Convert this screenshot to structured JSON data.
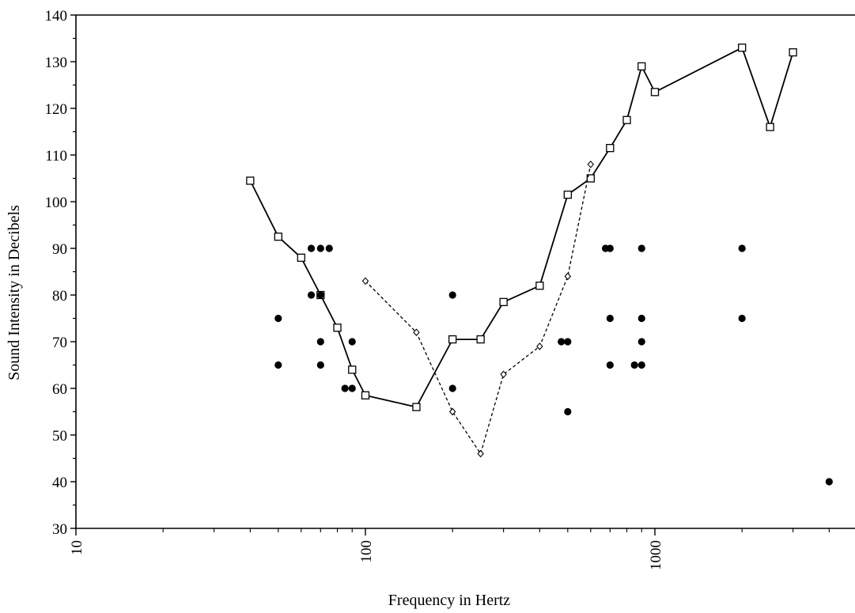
{
  "chart_data": {
    "type": "scatter",
    "xlabel": "Frequency in Hertz",
    "ylabel": "Sound Intensity in Decibels",
    "x_scale": "log",
    "xlim": [
      10,
      4500
    ],
    "ylim": [
      30,
      140
    ],
    "x_ticks": [
      "10",
      "100",
      "1000"
    ],
    "y_ticks": [
      "30",
      "40",
      "50",
      "60",
      "70",
      "80",
      "90",
      "100",
      "110",
      "120",
      "130",
      "140"
    ],
    "grid": false,
    "series": [
      {
        "marker": "open-square",
        "line": "solid",
        "points": [
          [
            40,
            104.5
          ],
          [
            50,
            92.5
          ],
          [
            60,
            88
          ],
          [
            70,
            80
          ],
          [
            80,
            73
          ],
          [
            90,
            64
          ],
          [
            100,
            58.5
          ],
          [
            150,
            56
          ],
          [
            200,
            70.5
          ],
          [
            250,
            70.5
          ],
          [
            300,
            78.5
          ],
          [
            400,
            82
          ],
          [
            500,
            101.5
          ],
          [
            600,
            105
          ],
          [
            700,
            111.5
          ],
          [
            800,
            117.5
          ],
          [
            900,
            129
          ],
          [
            1000,
            123.5
          ],
          [
            2000,
            133
          ],
          [
            2500,
            116
          ],
          [
            3000,
            132
          ]
        ]
      },
      {
        "marker": "open-diamond",
        "line": "dashed",
        "points": [
          [
            100,
            83
          ],
          [
            150,
            72
          ],
          [
            200,
            55
          ],
          [
            250,
            46
          ],
          [
            300,
            63
          ],
          [
            400,
            69
          ],
          [
            500,
            84
          ],
          [
            600,
            108
          ]
        ]
      },
      {
        "marker": "filled-circle",
        "line": "none",
        "points": [
          [
            50,
            75
          ],
          [
            50,
            65
          ],
          [
            65,
            90
          ],
          [
            70,
            90
          ],
          [
            75,
            90
          ],
          [
            65,
            80
          ],
          [
            70,
            80
          ],
          [
            70,
            70
          ],
          [
            70,
            65
          ],
          [
            85,
            60
          ],
          [
            90,
            60
          ],
          [
            90,
            70
          ],
          [
            200,
            80
          ],
          [
            200,
            60
          ],
          [
            475,
            70
          ],
          [
            500,
            70
          ],
          [
            500,
            55
          ],
          [
            675,
            90
          ],
          [
            700,
            90
          ],
          [
            700,
            75
          ],
          [
            700,
            65
          ],
          [
            850,
            65
          ],
          [
            900,
            65
          ],
          [
            900,
            70
          ],
          [
            900,
            75
          ],
          [
            900,
            90
          ],
          [
            2000,
            90
          ],
          [
            2000,
            75
          ],
          [
            4000,
            40
          ]
        ]
      }
    ]
  }
}
